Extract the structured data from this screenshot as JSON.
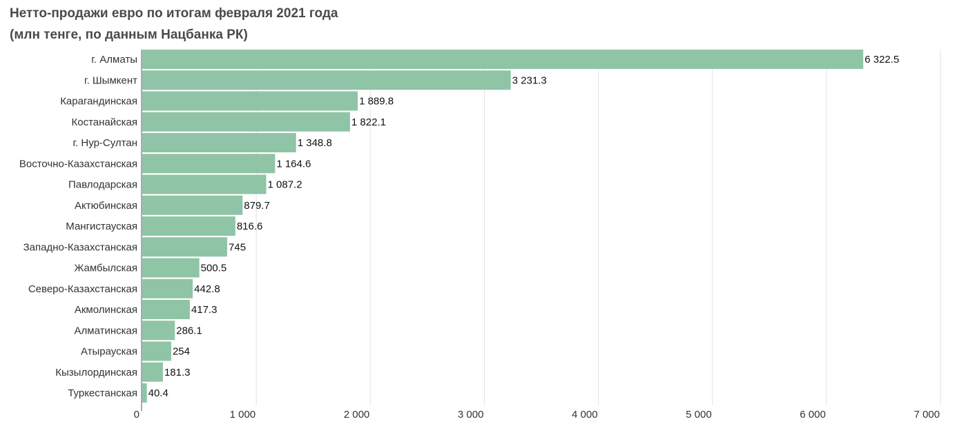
{
  "chart_data": {
    "type": "bar",
    "orientation": "horizontal",
    "title": "Нетто-продажи евро по итогам февраля 2021 года",
    "subtitle": "(млн тенге, по данным Нацбанка РК)",
    "categories": [
      "г. Алматы",
      "г. Шымкент",
      "Карагандинская",
      "Костанайская",
      "г. Нур-Султан",
      "Восточно-Казахстанская",
      "Павлодарская",
      "Актюбинская",
      "Мангистауская",
      "Западно-Казахстанская",
      "Жамбылская",
      "Северо-Казахстанская",
      "Акмолинская",
      "Алматинская",
      "Атырауская",
      "Кызылординская",
      "Туркестанская"
    ],
    "values": [
      6322.5,
      3231.3,
      1889.8,
      1822.1,
      1348.8,
      1164.6,
      1087.2,
      879.7,
      816.6,
      745,
      500.5,
      442.8,
      417.3,
      286.1,
      254,
      181.3,
      40.4
    ],
    "value_labels": [
      "6 322.5",
      "3 231.3",
      "1 889.8",
      "1 822.1",
      "1 348.8",
      "1 164.6",
      "1 087.2",
      "879.7",
      "816.6",
      "745",
      "500.5",
      "442.8",
      "417.3",
      "286.1",
      "254",
      "181.3",
      "40.4"
    ],
    "xlim": [
      0,
      7000
    ],
    "x_ticks": [
      0,
      1000,
      2000,
      3000,
      4000,
      5000,
      6000,
      7000
    ],
    "x_tick_labels": [
      "0",
      "1 000",
      "2 000",
      "3 000",
      "4 000",
      "5 000",
      "6 000",
      "7 000"
    ],
    "grid": true,
    "bar_color": "#8fc4a7",
    "grid_color": "#e3e3e3"
  }
}
